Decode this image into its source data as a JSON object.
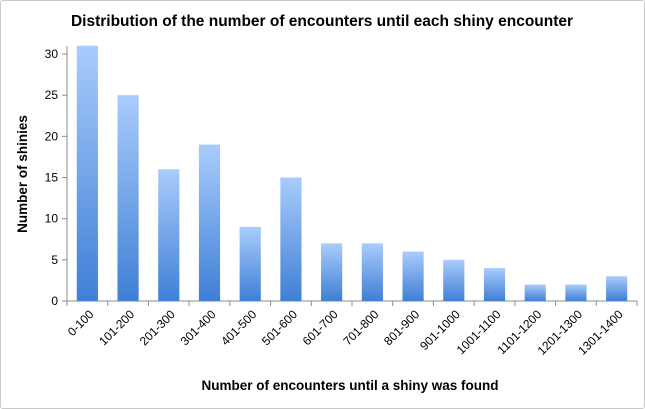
{
  "chart_data": {
    "type": "bar",
    "title": "Distribution of the number of encounters until each shiny encounter",
    "xlabel": "Number of encounters until a shiny was found",
    "ylabel": "Number of shinies",
    "categories": [
      "0-100",
      "101-200",
      "201-300",
      "301-400",
      "401-500",
      "501-600",
      "601-700",
      "701-800",
      "801-900",
      "901-1000",
      "1001-1100",
      "1101-1200",
      "1201-1300",
      "1301-1400"
    ],
    "values": [
      31,
      25,
      16,
      19,
      9,
      15,
      7,
      7,
      6,
      5,
      4,
      2,
      2,
      3
    ],
    "ylim": [
      0,
      30
    ],
    "yticks": [
      0,
      5,
      10,
      15,
      20,
      25,
      30
    ],
    "grid": false,
    "legend": "none",
    "colors": {
      "bar_top": "#a9ccfb",
      "bar_bottom": "#3f7fd6",
      "axis": "#8c8c8c"
    }
  }
}
